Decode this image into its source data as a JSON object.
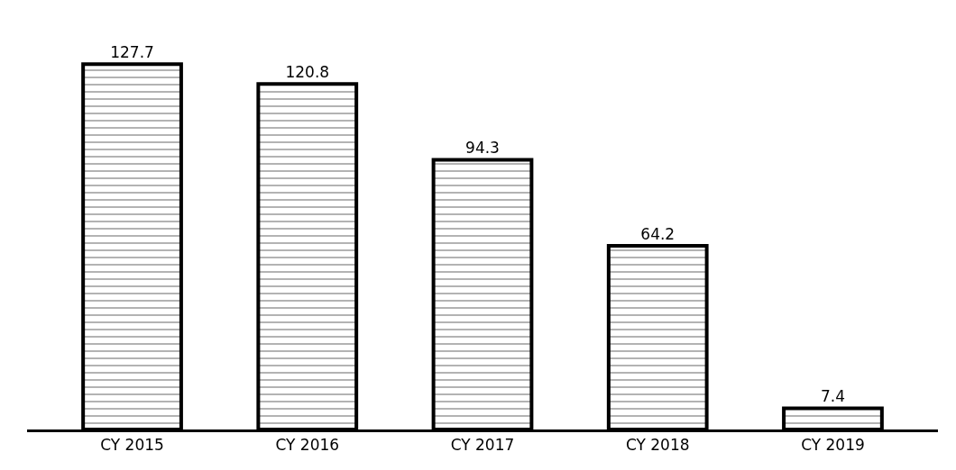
{
  "chart_data": {
    "type": "bar",
    "categories": [
      "CY 2015",
      "CY 2016",
      "CY 2017",
      "CY 2018",
      "CY 2019"
    ],
    "values": [
      127.7,
      120.8,
      94.3,
      64.2,
      7.4
    ],
    "color": "#000000",
    "data_labels": true
  }
}
